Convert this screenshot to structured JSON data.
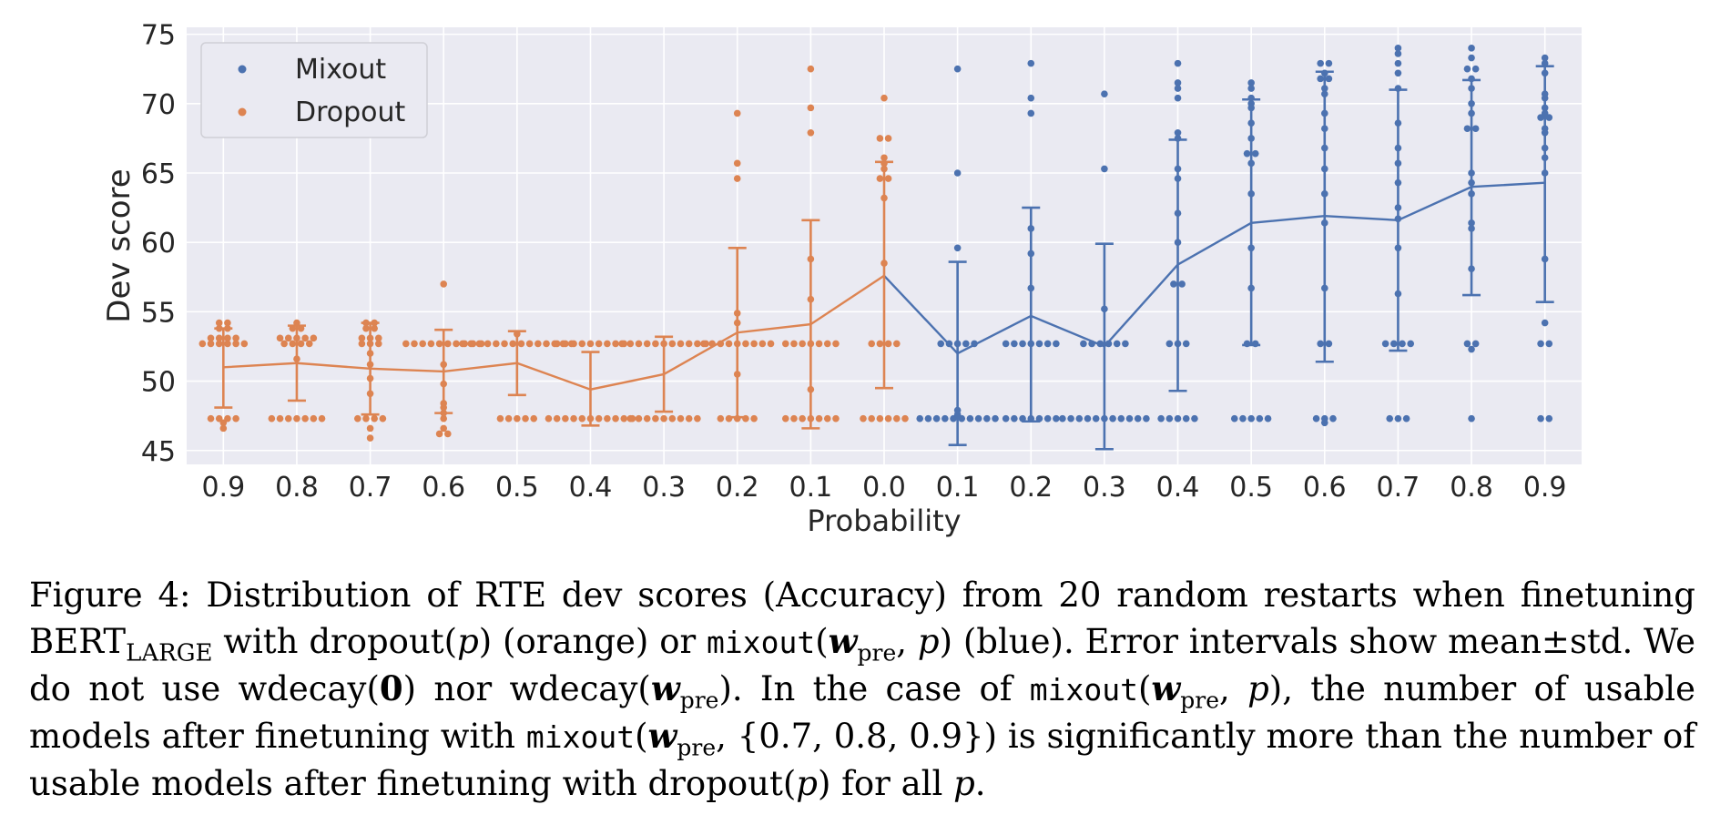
{
  "chart_data": {
    "type": "scatter",
    "xlabel": "Probability",
    "ylabel": "Dev score",
    "ylim": [
      44,
      75.5
    ],
    "yticks": [
      45,
      50,
      55,
      60,
      65,
      70,
      75
    ],
    "categories": [
      "0.9",
      "0.8",
      "0.7",
      "0.6",
      "0.5",
      "0.4",
      "0.3",
      "0.2",
      "0.1",
      "0.0",
      "0.1",
      "0.2",
      "0.3",
      "0.4",
      "0.5",
      "0.6",
      "0.7",
      "0.8",
      "0.9"
    ],
    "grid": true,
    "legend_position": "top-left",
    "background": "#eaeaf2",
    "series": [
      {
        "name": "Mixout",
        "color": "#4c72b0",
        "category_index": [
          10,
          11,
          12,
          13,
          14,
          15,
          16,
          17,
          18
        ],
        "mean": [
          52.0,
          54.7,
          52.5,
          58.4,
          61.4,
          61.9,
          61.6,
          64.0,
          64.3
        ],
        "std_low": [
          45.4,
          47.1,
          45.1,
          49.3,
          52.6,
          51.4,
          52.2,
          56.2,
          55.7
        ],
        "std_high": [
          58.6,
          62.5,
          59.9,
          67.4,
          70.3,
          72.3,
          71.0,
          71.7,
          72.7
        ],
        "points": [
          [
            47.3,
            47.3,
            47.3,
            47.3,
            47.3,
            47.3,
            47.3,
            47.3,
            47.3,
            47.3,
            47.6,
            47.9,
            52.7,
            52.7,
            52.7,
            52.7,
            52.7,
            59.6,
            65.0,
            72.5
          ],
          [
            47.3,
            47.3,
            47.3,
            47.3,
            47.3,
            47.3,
            47.3,
            52.7,
            52.7,
            52.7,
            52.7,
            52.7,
            52.7,
            52.7,
            56.7,
            59.2,
            61.0,
            69.3,
            70.4,
            72.9
          ],
          [
            47.3,
            47.3,
            47.3,
            47.3,
            47.3,
            47.3,
            47.3,
            47.3,
            47.3,
            47.3,
            47.3,
            52.7,
            52.7,
            52.7,
            52.7,
            52.7,
            52.7,
            55.2,
            65.3,
            70.7
          ],
          [
            47.3,
            47.3,
            47.3,
            47.3,
            52.7,
            52.7,
            52.7,
            57.0,
            57.0,
            60.0,
            62.1,
            64.6,
            65.3,
            67.5,
            67.9,
            70.4,
            71.1,
            71.5,
            72.9,
            47.3
          ],
          [
            47.3,
            47.3,
            47.3,
            47.3,
            47.3,
            52.7,
            52.7,
            56.7,
            59.6,
            63.5,
            65.7,
            66.4,
            66.4,
            67.5,
            68.6,
            69.7,
            70.0,
            70.4,
            71.1,
            71.5
          ],
          [
            47.0,
            47.3,
            47.3,
            47.3,
            52.7,
            52.7,
            56.7,
            61.4,
            63.5,
            65.3,
            66.8,
            68.2,
            69.3,
            70.7,
            71.1,
            71.8,
            71.8,
            72.2,
            72.9,
            72.9
          ],
          [
            47.3,
            47.3,
            47.3,
            52.7,
            52.7,
            52.7,
            52.7,
            56.3,
            59.6,
            61.7,
            62.5,
            64.3,
            65.7,
            66.8,
            68.6,
            71.1,
            72.2,
            72.9,
            73.6,
            74.0
          ],
          [
            47.3,
            52.3,
            52.7,
            52.7,
            58.1,
            61.0,
            61.4,
            63.5,
            64.3,
            65.0,
            68.2,
            68.2,
            69.3,
            70.0,
            71.1,
            71.8,
            72.5,
            72.5,
            73.3,
            74.0
          ],
          [
            47.3,
            47.3,
            52.7,
            52.7,
            54.2,
            58.8,
            65.0,
            66.1,
            66.8,
            67.9,
            68.2,
            69.0,
            69.0,
            69.3,
            69.7,
            70.4,
            70.7,
            72.2,
            72.9,
            73.3
          ]
        ]
      },
      {
        "name": "Dropout",
        "color": "#dd8452",
        "category_index": [
          0,
          1,
          2,
          3,
          4,
          5,
          6,
          7,
          8,
          9
        ],
        "mean": [
          51.0,
          51.3,
          50.9,
          50.7,
          51.3,
          49.4,
          50.5,
          53.5,
          54.1,
          57.6
        ],
        "std_low": [
          48.1,
          48.6,
          47.6,
          47.7,
          49.0,
          46.8,
          47.8,
          47.4,
          46.6,
          49.5
        ],
        "std_high": [
          53.8,
          54.0,
          54.2,
          53.7,
          53.6,
          52.1,
          53.2,
          59.6,
          61.6,
          65.8
        ],
        "points": [
          [
            46.6,
            47.0,
            47.3,
            47.3,
            47.3,
            47.3,
            52.7,
            52.7,
            52.7,
            52.7,
            52.7,
            52.7,
            53.1,
            53.1,
            53.1,
            53.1,
            53.8,
            53.8,
            54.2,
            54.2
          ],
          [
            47.3,
            47.3,
            47.3,
            47.3,
            47.3,
            47.3,
            47.3,
            51.6,
            52.7,
            52.7,
            52.7,
            52.7,
            53.1,
            53.1,
            53.1,
            53.1,
            53.1,
            53.8,
            53.8,
            54.2
          ],
          [
            45.9,
            46.6,
            47.3,
            47.3,
            47.3,
            47.3,
            49.1,
            50.2,
            51.2,
            52.0,
            52.7,
            52.7,
            52.7,
            53.1,
            53.1,
            53.1,
            53.8,
            53.8,
            54.2,
            54.2
          ],
          [
            46.2,
            46.2,
            46.6,
            47.3,
            47.7,
            48.1,
            48.4,
            49.8,
            51.2,
            52.7,
            52.7,
            52.7,
            52.7,
            52.7,
            52.7,
            52.7,
            52.7,
            52.7,
            52.7,
            57.0
          ],
          [
            47.3,
            47.3,
            47.3,
            47.3,
            47.3,
            52.7,
            52.7,
            52.7,
            52.7,
            52.7,
            52.7,
            52.7,
            52.7,
            52.7,
            52.7,
            52.7,
            52.7,
            52.7,
            52.7,
            53.4
          ],
          [
            47.3,
            47.3,
            47.3,
            47.3,
            47.3,
            47.3,
            47.3,
            47.3,
            47.3,
            47.3,
            47.3,
            52.7,
            52.7,
            52.7,
            52.7,
            52.7,
            52.7,
            52.7,
            52.7,
            52.7
          ],
          [
            47.3,
            47.3,
            47.3,
            47.3,
            47.3,
            47.3,
            47.3,
            47.3,
            47.3,
            52.7,
            52.7,
            52.7,
            52.7,
            52.7,
            52.7,
            52.7,
            52.7,
            52.7,
            52.7,
            52.7
          ],
          [
            47.3,
            47.3,
            47.3,
            47.3,
            47.3,
            50.5,
            52.7,
            52.7,
            52.7,
            52.7,
            52.7,
            52.7,
            52.7,
            52.7,
            54.2,
            54.9,
            64.6,
            65.7,
            69.3,
            52.7
          ],
          [
            47.3,
            47.3,
            47.3,
            47.3,
            47.3,
            47.3,
            47.3,
            49.4,
            52.7,
            52.7,
            52.7,
            52.7,
            52.7,
            52.7,
            52.7,
            55.9,
            58.8,
            67.9,
            69.7,
            72.5
          ],
          [
            47.3,
            47.3,
            47.3,
            47.3,
            47.3,
            47.3,
            52.7,
            52.7,
            52.7,
            52.7,
            58.5,
            63.2,
            64.6,
            64.6,
            65.3,
            65.7,
            66.1,
            67.5,
            67.5,
            70.4
          ]
        ]
      }
    ]
  },
  "caption": {
    "label": "Figure 4:",
    "t1": " Distribution of RTE dev scores (Accuracy) from 20 random restarts when finetuning BERT",
    "t1_sub": "LARGE",
    "t2": " with dropout(",
    "p": "p",
    "t3": ") (orange) or ",
    "mixout": "mixout",
    "paren_open": "(",
    "w": "w",
    "pre": "pre",
    "comma_p": ", ",
    "t4": ") (blue). Error intervals show mean±std. We do not use wdecay(",
    "zero": "0",
    "t5": ") nor wdecay(",
    "t6": "). In the case of ",
    "t7": "), the number of usable models after finetuning with ",
    "set": ", {0.7, 0.8, 0.9}",
    "t8": ") is significantly more than the number of usable models after finetuning with dropout(",
    "t9": ") for all ",
    "end": "."
  }
}
